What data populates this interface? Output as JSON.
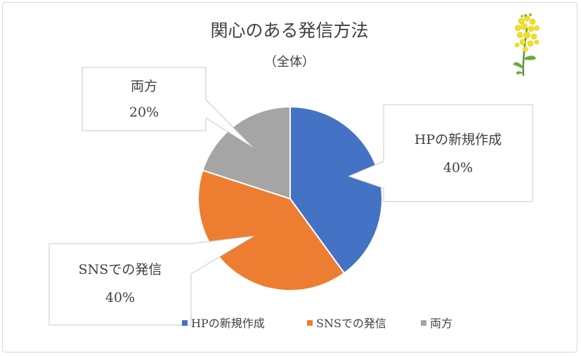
{
  "chart_data": {
    "type": "pie",
    "title": "関心のある発信方法",
    "subtitle": "（全体）",
    "slices": [
      {
        "name": "HPの新規作成",
        "value": 40,
        "label": "40%",
        "color": "#4472c4"
      },
      {
        "name": "SNSでの発信",
        "value": 40,
        "label": "40%",
        "color": "#ed7d31"
      },
      {
        "name": "両方",
        "value": 20,
        "label": "20%",
        "color": "#a5a5a5"
      }
    ],
    "legend_position": "bottom"
  },
  "decoration": {
    "icon": "rapeseed-flower-icon"
  }
}
